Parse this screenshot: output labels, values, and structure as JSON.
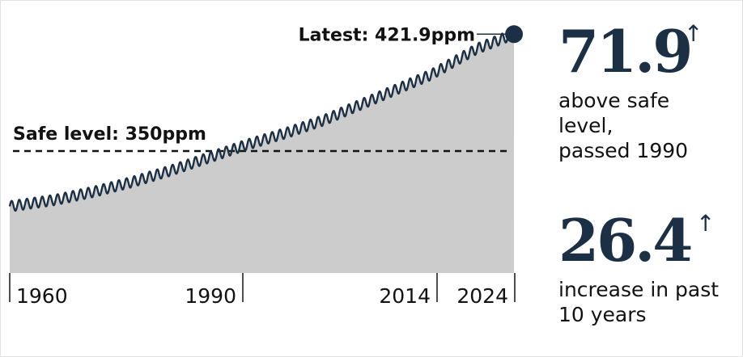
{
  "chart_data": {
    "type": "area",
    "title": "",
    "xlabel": "",
    "ylabel": "",
    "x_ticks": [
      1960,
      1990,
      2014,
      2024
    ],
    "xlim": [
      1959,
      2024.9
    ],
    "ylim": [
      275,
      428
    ],
    "seasonal_amplitude": 3.2,
    "series": [
      {
        "x": [
          1959,
          1965,
          1970,
          1975,
          1980,
          1985,
          1990,
          1995,
          2000,
          2005,
          2010,
          2014,
          2020,
          2024.8
        ],
        "values": [
          316,
          320,
          325,
          331,
          338,
          346,
          354,
          361,
          369,
          379,
          389,
          397,
          413,
          421.9
        ]
      }
    ],
    "reference_line": {
      "label": "Safe level: 350ppm",
      "value": 350
    },
    "latest": {
      "label": "Latest: 421.9ppm",
      "x": 2024.8,
      "value": 421.9
    },
    "colors": {
      "area": "#cccccc",
      "line": "#1b2f45",
      "reference": "#121212",
      "text": "#121212"
    }
  },
  "stats": [
    {
      "value": "71.9",
      "arrow": "↑",
      "caption": [
        "above safe",
        "level,",
        "passed 1990"
      ]
    },
    {
      "value": "26.4",
      "arrow": "↑",
      "caption": [
        "increase in past",
        "10 years"
      ]
    }
  ]
}
